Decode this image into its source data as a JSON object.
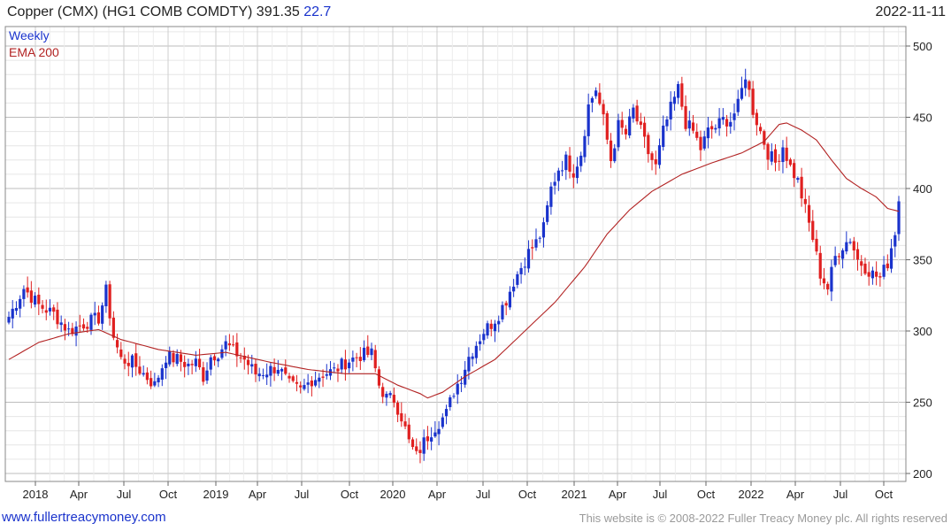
{
  "header": {
    "title": "Copper (CMX) (HG1 COMB COMDTY) 391.35",
    "change": "22.7",
    "date": "2022-11-11"
  },
  "footer": {
    "site": "www.fullertreacymoney.com",
    "copyright": "This website is © 2008-2022 Fuller Treacy Money plc. All rights reserved"
  },
  "chart_data": {
    "type": "candlestick",
    "title": "Copper (CMX) (HG1 COMB COMDTY) 391.35 22.7",
    "legend": [
      {
        "label": "Weekly",
        "color": "#1a33cc"
      },
      {
        "label": "EMA 200",
        "color": "#b22222"
      }
    ],
    "legend_position": "top-left",
    "y_axis_side": "right",
    "ylim": [
      195,
      505
    ],
    "yticks": [
      200,
      250,
      300,
      350,
      400,
      450,
      500
    ],
    "x_ticks": [
      "2018",
      "Apr",
      "Jul",
      "Oct",
      "2019",
      "Apr",
      "Jul",
      "Oct",
      "2020",
      "Apr",
      "Jul",
      "Oct",
      "2021",
      "Apr",
      "Jul",
      "Oct",
      "2022",
      "Apr",
      "Jul",
      "Oct"
    ],
    "grid": true,
    "colors": {
      "up": "#1a33cc",
      "down": "#e02020",
      "ema": "#b22222",
      "grid": "#d8d8d8"
    },
    "close_series": {
      "name": "Weekly",
      "points": [
        [
          0,
          310
        ],
        [
          4,
          330
        ],
        [
          8,
          318
        ],
        [
          12,
          312
        ],
        [
          16,
          300
        ],
        [
          20,
          305
        ],
        [
          24,
          309
        ],
        [
          26,
          328
        ],
        [
          28,
          296
        ],
        [
          30,
          280
        ],
        [
          33,
          278
        ],
        [
          36,
          270
        ],
        [
          39,
          262
        ],
        [
          42,
          282
        ],
        [
          45,
          280
        ],
        [
          48,
          276
        ],
        [
          50,
          278
        ],
        [
          52,
          268
        ],
        [
          54,
          282
        ],
        [
          56,
          285
        ],
        [
          58,
          291
        ],
        [
          60,
          286
        ],
        [
          63,
          280
        ],
        [
          66,
          270
        ],
        [
          69,
          272
        ],
        [
          72,
          275
        ],
        [
          75,
          262
        ],
        [
          78,
          258
        ],
        [
          81,
          266
        ],
        [
          84,
          270
        ],
        [
          87,
          272
        ],
        [
          90,
          278
        ],
        [
          94,
          283
        ],
        [
          97,
          284
        ],
        [
          99,
          262
        ],
        [
          101,
          253
        ],
        [
          103,
          252
        ],
        [
          105,
          240
        ],
        [
          107,
          222
        ],
        [
          109,
          212
        ],
        [
          111,
          222
        ],
        [
          113,
          230
        ],
        [
          115,
          236
        ],
        [
          117,
          242
        ],
        [
          119,
          258
        ],
        [
          121,
          268
        ],
        [
          123,
          282
        ],
        [
          125,
          291
        ],
        [
          127,
          300
        ],
        [
          129,
          305
        ],
        [
          131,
          312
        ],
        [
          133,
          322
        ],
        [
          135,
          335
        ],
        [
          137,
          345
        ],
        [
          139,
          355
        ],
        [
          141,
          362
        ],
        [
          143,
          372
        ],
        [
          145,
          400
        ],
        [
          147,
          414
        ],
        [
          149,
          420
        ],
        [
          151,
          412
        ],
        [
          153,
          425
        ],
        [
          155,
          458
        ],
        [
          157,
          470
        ],
        [
          159,
          448
        ],
        [
          161,
          420
        ],
        [
          163,
          444
        ],
        [
          165,
          438
        ],
        [
          167,
          455
        ],
        [
          169,
          440
        ],
        [
          171,
          425
        ],
        [
          173,
          415
        ],
        [
          175,
          440
        ],
        [
          177,
          456
        ],
        [
          179,
          470
        ],
        [
          181,
          446
        ],
        [
          183,
          440
        ],
        [
          185,
          428
        ],
        [
          187,
          440
        ],
        [
          189,
          443
        ],
        [
          191,
          448
        ],
        [
          193,
          448
        ],
        [
          195,
          458
        ],
        [
          197,
          480
        ],
        [
          199,
          455
        ],
        [
          201,
          440
        ],
        [
          203,
          425
        ],
        [
          205,
          418
        ],
        [
          207,
          430
        ],
        [
          209,
          415
        ],
        [
          211,
          405
        ],
        [
          213,
          385
        ],
        [
          215,
          365
        ],
        [
          217,
          340
        ],
        [
          219,
          330
        ],
        [
          221,
          352
        ],
        [
          223,
          360
        ],
        [
          225,
          365
        ],
        [
          227,
          350
        ],
        [
          229,
          345
        ],
        [
          231,
          340
        ],
        [
          233,
          337
        ],
        [
          235,
          348
        ],
        [
          237,
          370
        ],
        [
          238,
          391
        ]
      ]
    },
    "ema_200_points": [
      [
        0,
        280
      ],
      [
        8,
        292
      ],
      [
        16,
        298
      ],
      [
        24,
        301
      ],
      [
        30,
        294
      ],
      [
        40,
        287
      ],
      [
        50,
        283
      ],
      [
        58,
        285
      ],
      [
        70,
        278
      ],
      [
        80,
        273
      ],
      [
        90,
        270
      ],
      [
        98,
        270
      ],
      [
        104,
        262
      ],
      [
        110,
        256
      ],
      [
        112,
        253
      ],
      [
        116,
        257
      ],
      [
        122,
        268
      ],
      [
        130,
        280
      ],
      [
        138,
        300
      ],
      [
        146,
        320
      ],
      [
        154,
        345
      ],
      [
        160,
        368
      ],
      [
        166,
        385
      ],
      [
        172,
        398
      ],
      [
        180,
        410
      ],
      [
        188,
        418
      ],
      [
        196,
        425
      ],
      [
        202,
        433
      ],
      [
        206,
        445
      ],
      [
        208,
        446
      ],
      [
        212,
        441
      ],
      [
        216,
        434
      ],
      [
        220,
        420
      ],
      [
        224,
        407
      ],
      [
        228,
        400
      ],
      [
        232,
        394
      ],
      [
        235,
        386
      ],
      [
        238,
        384
      ]
    ]
  }
}
